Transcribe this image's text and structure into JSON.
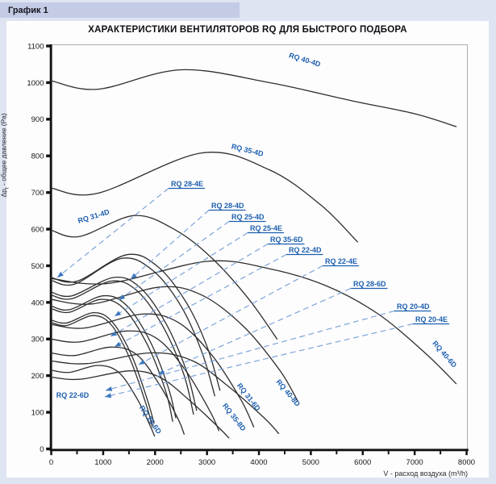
{
  "header": {
    "label": "График 1"
  },
  "axes": {
    "y": {
      "prefix": "Δp",
      "sub": "t",
      "suffix": " - общее давление (Pa)"
    },
    "x": {
      "label": "V - расход воздуха (m³/h)"
    }
  },
  "colors": {
    "page_bg": "#dfe4f2",
    "header_bg": "#c3cce4",
    "panel_bg": "#fdfdfe",
    "curve": "#2e2e2e",
    "label_blue": "#1d5fae",
    "leader_blue": "#7da4d8",
    "arrow_blue": "#3c77bc",
    "axis_black": "#111111",
    "box_gray": "#a9adb5"
  },
  "chart_data": {
    "type": "line",
    "title": "ХАРАКТЕРИСТИКИ ВЕНТИЛЯТОРОВ RQ ДЛЯ БЫСТРОГО ПОДБОРА",
    "xlabel": "V - расход воздуха (m³/h)",
    "ylabel": "Δpt - общее давление (Pa)",
    "xlim": [
      0,
      8000
    ],
    "ylim": [
      0,
      1100
    ],
    "x_tick_major": 1000,
    "x_tick_minor": 500,
    "y_tick": 100,
    "grid": false,
    "legend": "inline-labels",
    "series": [
      {
        "name": "RQ 40-4D",
        "points": [
          [
            0,
            1005
          ],
          [
            900,
            982
          ],
          [
            2500,
            1035
          ],
          [
            4200,
            1000
          ],
          [
            5800,
            950
          ],
          [
            7000,
            915
          ],
          [
            7800,
            880
          ]
        ]
      },
      {
        "name": "RQ 35-4D",
        "points": [
          [
            0,
            712
          ],
          [
            900,
            698
          ],
          [
            2900,
            808
          ],
          [
            4200,
            762
          ],
          [
            5200,
            665
          ],
          [
            5900,
            565
          ]
        ]
      },
      {
        "name": "RQ 31-4D",
        "points": [
          [
            0,
            597
          ],
          [
            550,
            580
          ],
          [
            1600,
            637
          ],
          [
            2400,
            597
          ],
          [
            3100,
            520
          ],
          [
            3800,
            410
          ],
          [
            4350,
            300
          ]
        ]
      },
      {
        "name": "RQ 28-4D",
        "points": [
          [
            0,
            468
          ],
          [
            500,
            458
          ],
          [
            1450,
            530
          ],
          [
            2050,
            498
          ],
          [
            2600,
            400
          ],
          [
            3000,
            280
          ],
          [
            3250,
            160
          ]
        ]
      },
      {
        "name": "RQ 28-4E",
        "points": [
          [
            0,
            460
          ],
          [
            450,
            450
          ],
          [
            1350,
            520
          ],
          [
            1950,
            488
          ],
          [
            2500,
            390
          ],
          [
            2900,
            265
          ],
          [
            3150,
            145
          ]
        ]
      },
      {
        "name": "RQ 25-4D",
        "points": [
          [
            0,
            428
          ],
          [
            400,
            418
          ],
          [
            1200,
            468
          ],
          [
            1700,
            442
          ],
          [
            2200,
            345
          ],
          [
            2600,
            215
          ],
          [
            2800,
            105
          ]
        ]
      },
      {
        "name": "RQ 25-4E",
        "points": [
          [
            0,
            420
          ],
          [
            400,
            410
          ],
          [
            1150,
            458
          ],
          [
            1650,
            432
          ],
          [
            2150,
            335
          ],
          [
            2550,
            205
          ],
          [
            2740,
            95
          ]
        ]
      },
      {
        "name": "RQ 22-4D",
        "points": [
          [
            0,
            390
          ],
          [
            350,
            380
          ],
          [
            1000,
            418
          ],
          [
            1450,
            392
          ],
          [
            1900,
            295
          ],
          [
            2250,
            170
          ],
          [
            2400,
            85
          ]
        ]
      },
      {
        "name": "RQ 22-4E",
        "points": [
          [
            0,
            383
          ],
          [
            350,
            373
          ],
          [
            950,
            408
          ],
          [
            1400,
            383
          ],
          [
            1850,
            285
          ],
          [
            2200,
            160
          ],
          [
            2340,
            75
          ]
        ]
      },
      {
        "name": "RQ 20-4D",
        "points": [
          [
            0,
            352
          ],
          [
            300,
            344
          ],
          [
            820,
            372
          ],
          [
            1180,
            346
          ],
          [
            1550,
            255
          ],
          [
            1850,
            135
          ],
          [
            1980,
            70
          ]
        ]
      },
      {
        "name": "RQ 20-4E",
        "points": [
          [
            0,
            345
          ],
          [
            300,
            337
          ],
          [
            800,
            364
          ],
          [
            1160,
            338
          ],
          [
            1520,
            245
          ],
          [
            1820,
            125
          ],
          [
            1950,
            60
          ]
        ]
      },
      {
        "name": "RQ 40-6D",
        "points": [
          [
            0,
            465
          ],
          [
            1100,
            452
          ],
          [
            3000,
            512
          ],
          [
            4200,
            492
          ],
          [
            5300,
            445
          ],
          [
            6300,
            368
          ],
          [
            7200,
            262
          ],
          [
            7800,
            178
          ]
        ]
      },
      {
        "name": "RQ 35-6D",
        "points": [
          [
            0,
            408
          ],
          [
            800,
            396
          ],
          [
            2100,
            442
          ],
          [
            2900,
            420
          ],
          [
            3700,
            335
          ],
          [
            4400,
            215
          ],
          [
            4750,
            130
          ]
        ]
      },
      {
        "name": "RQ 31-6D",
        "points": [
          [
            0,
            340
          ],
          [
            650,
            330
          ],
          [
            1750,
            368
          ],
          [
            2450,
            345
          ],
          [
            3100,
            255
          ],
          [
            3650,
            135
          ],
          [
            3900,
            60
          ]
        ]
      },
      {
        "name": "RQ 28-6D",
        "points": [
          [
            0,
            300
          ],
          [
            550,
            292
          ],
          [
            1450,
            322
          ],
          [
            2050,
            300
          ],
          [
            2600,
            212
          ],
          [
            3050,
            105
          ],
          [
            3230,
            50
          ]
        ]
      },
      {
        "name": "RQ 25-6D",
        "points": [
          [
            0,
            262
          ],
          [
            450,
            255
          ],
          [
            1150,
            278
          ],
          [
            1650,
            257
          ],
          [
            2100,
            172
          ],
          [
            2450,
            80
          ],
          [
            2560,
            40
          ]
        ]
      },
      {
        "name": "RQ 22-6D",
        "points": [
          [
            0,
            215
          ],
          [
            350,
            209
          ],
          [
            900,
            228
          ],
          [
            1300,
            209
          ],
          [
            1650,
            138
          ],
          [
            1900,
            65
          ],
          [
            1990,
            35
          ]
        ]
      },
      {
        "name": "RQ 40-8D",
        "points": [
          [
            0,
            240
          ],
          [
            700,
            233
          ],
          [
            1900,
            262
          ],
          [
            2700,
            242
          ],
          [
            3400,
            172
          ],
          [
            4100,
            85
          ],
          [
            4380,
            42
          ]
        ]
      },
      {
        "name": "RQ 35-8D",
        "points": [
          [
            0,
            196
          ],
          [
            550,
            190
          ],
          [
            1500,
            213
          ],
          [
            2100,
            195
          ],
          [
            2700,
            128
          ],
          [
            3250,
            55
          ],
          [
            3420,
            30
          ]
        ]
      }
    ],
    "labels": [
      {
        "text": "RQ 40-4D",
        "style": "inline",
        "cx": 377,
        "cy": 77,
        "rot": 17
      },
      {
        "text": "RQ 35-4D",
        "style": "inline",
        "cx": 306,
        "cy": 189,
        "rot": 14
      },
      {
        "text": "RQ 31-4D",
        "style": "inline",
        "cx": 117,
        "cy": 271,
        "rot": -17
      },
      {
        "text": "RQ 40-6D",
        "style": "inline",
        "cx": 549,
        "cy": 441,
        "rot": 49
      },
      {
        "text": "RQ 40-8D",
        "style": "inline",
        "cx": 355,
        "cy": 489,
        "rot": 50
      },
      {
        "text": "RQ 31-6D",
        "style": "inline",
        "cx": 306,
        "cy": 494,
        "rot": 52
      },
      {
        "text": "RQ 35-8D",
        "style": "inline",
        "cx": 288,
        "cy": 519,
        "rot": 52
      },
      {
        "text": "RQ 25-6D",
        "style": "inline",
        "cx": 184,
        "cy": 522,
        "rot": 55
      },
      {
        "text": "RQ 22-6D",
        "style": "inline",
        "cx": 90,
        "cy": 493,
        "rot": 0
      },
      {
        "text": "RQ 28-4E",
        "style": "leader",
        "lx": 212,
        "ly": 231,
        "ex": 71,
        "ey": 344
      },
      {
        "text": "RQ 28-4D",
        "style": "leader",
        "lx": 262,
        "ly": 258,
        "ex": 162,
        "ey": 346
      },
      {
        "text": "RQ 25-4D",
        "style": "leader",
        "lx": 287,
        "ly": 272,
        "ex": 147,
        "ey": 372
      },
      {
        "text": "RQ 25-4E",
        "style": "leader",
        "lx": 310,
        "ly": 286,
        "ex": 142,
        "ey": 392
      },
      {
        "text": "RQ 35-6D",
        "style": "leader",
        "lx": 335,
        "ly": 300,
        "ex": 137,
        "ey": 417
      },
      {
        "text": "RQ 22-4D",
        "style": "leader",
        "lx": 358,
        "ly": 313,
        "ex": 142,
        "ey": 430
      },
      {
        "text": "RQ 22-4E",
        "style": "leader",
        "lx": 403,
        "ly": 327,
        "ex": 172,
        "ey": 452
      },
      {
        "text": "RQ 28-6D",
        "style": "leader",
        "lx": 438,
        "ly": 355,
        "ex": 196,
        "ey": 464
      },
      {
        "text": "RQ 20-4D",
        "style": "leader",
        "lx": 492,
        "ly": 383,
        "ex": 131,
        "ey": 484
      },
      {
        "text": "RQ 20-4E",
        "style": "leader",
        "lx": 515,
        "ly": 399,
        "ex": 130,
        "ey": 492
      }
    ]
  }
}
